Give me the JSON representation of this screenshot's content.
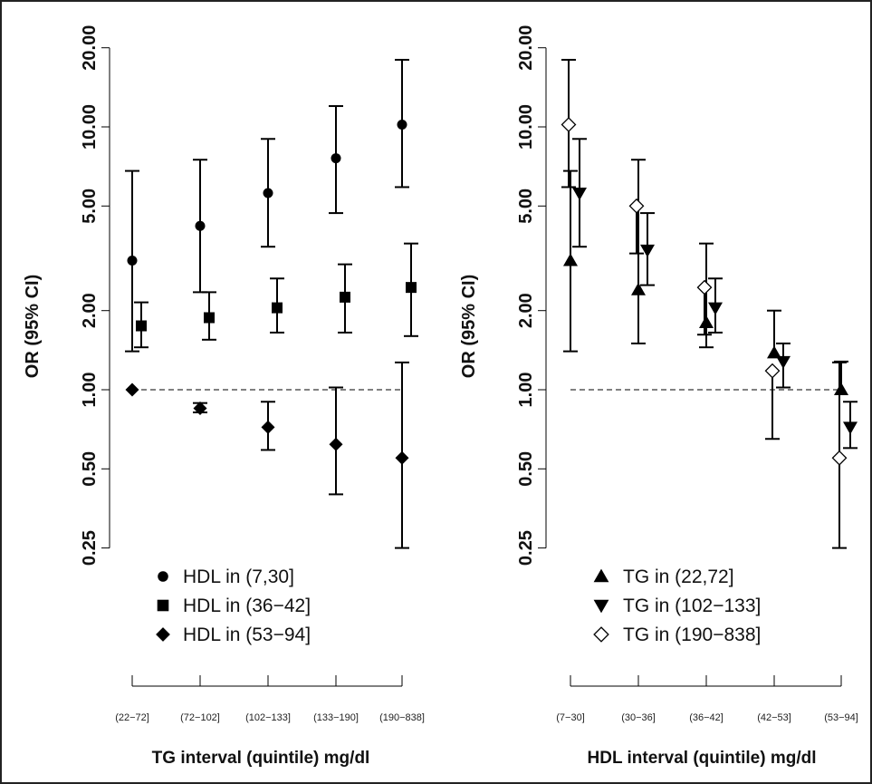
{
  "chart_data": [
    {
      "type": "scatter",
      "subtype": "error-bar",
      "ylabel": "OR (95% CI)",
      "xlabel": "TG interval (quintile) mg/dl",
      "y_scale": "log",
      "ylim": [
        0.25,
        20
      ],
      "y_ticks": [
        "0.25",
        "0.50",
        "1.00",
        "2.00",
        "5.00",
        "10.00",
        "20.00"
      ],
      "reference_line": 1.0,
      "categories": [
        "(22−72]",
        "(72−102]",
        "(102−133]",
        "(133−190]",
        "(190−838]"
      ],
      "legend_position": "bottom",
      "series": [
        {
          "name": "HDL in (7,30]",
          "marker": "circle",
          "values": [
            3.1,
            4.2,
            5.6,
            7.6,
            10.2
          ],
          "lower": [
            1.4,
            2.35,
            3.5,
            4.7,
            5.9
          ],
          "upper": [
            6.8,
            7.5,
            9.0,
            12.0,
            18.0
          ]
        },
        {
          "name": "HDL in (36−42]",
          "marker": "square",
          "values": [
            1.75,
            1.88,
            2.05,
            2.25,
            2.45
          ],
          "lower": [
            1.45,
            1.55,
            1.65,
            1.65,
            1.6
          ],
          "upper": [
            2.15,
            2.35,
            2.65,
            3.0,
            3.6
          ]
        },
        {
          "name": "HDL in (53−94]",
          "marker": "diamond",
          "values": [
            1.0,
            0.85,
            0.72,
            0.62,
            0.55
          ],
          "lower": [
            null,
            0.82,
            0.59,
            0.4,
            0.25
          ],
          "upper": [
            null,
            0.89,
            0.9,
            1.02,
            1.27
          ]
        }
      ]
    },
    {
      "type": "scatter",
      "subtype": "error-bar",
      "ylabel": "OR (95% CI)",
      "xlabel": "HDL interval (quintile) mg/dl",
      "y_scale": "log",
      "ylim": [
        0.25,
        20
      ],
      "y_ticks": [
        "0.25",
        "0.50",
        "1.00",
        "2.00",
        "5.00",
        "10.00",
        "20.00"
      ],
      "reference_line": 1.0,
      "categories": [
        "(7−30]",
        "(30−36]",
        "(36−42]",
        "(42−53]",
        "(53−94]"
      ],
      "legend_position": "bottom",
      "series": [
        {
          "name": "TG in (22,72]",
          "marker": "triangle-up",
          "values": [
            3.1,
            2.4,
            1.8,
            1.38,
            1.0
          ],
          "lower": [
            1.4,
            1.5,
            1.45,
            null,
            null
          ],
          "upper": [
            6.8,
            7.5,
            3.6,
            2.0,
            1.28
          ]
        },
        {
          "name": "TG in (102−133]",
          "marker": "triangle-down",
          "values": [
            5.6,
            3.4,
            2.05,
            1.28,
            0.72
          ],
          "lower": [
            3.5,
            2.5,
            1.65,
            1.02,
            0.6
          ],
          "upper": [
            9.0,
            4.7,
            2.65,
            1.5,
            0.9
          ]
        },
        {
          "name": "TG in (190−838]",
          "marker": "diamond-open",
          "values": [
            10.2,
            5.0,
            2.45,
            1.18,
            0.55
          ],
          "lower": [
            5.9,
            3.3,
            1.62,
            0.65,
            0.25
          ],
          "upper": [
            18.0,
            null,
            null,
            null,
            1.27
          ]
        }
      ]
    }
  ]
}
